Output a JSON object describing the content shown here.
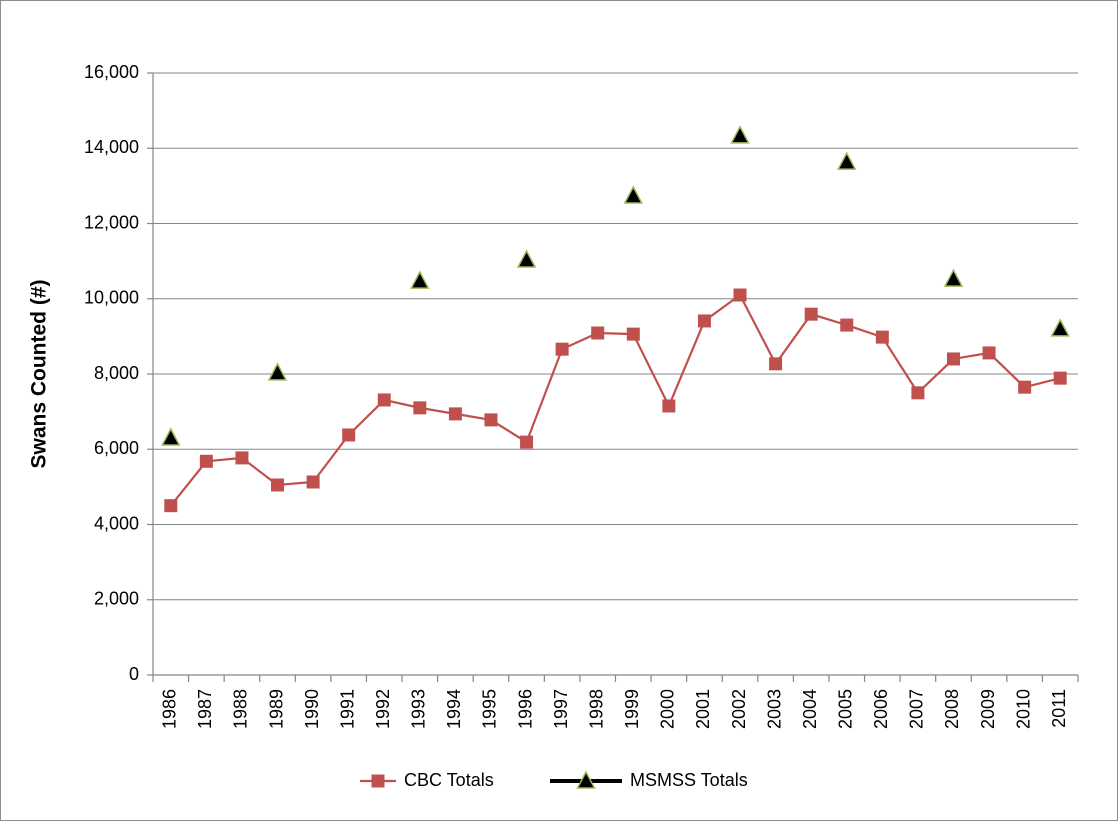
{
  "chart_data": {
    "type": "line",
    "y_label": "Swans Counted (#)",
    "categories": [
      "1986",
      "1987",
      "1988",
      "1989",
      "1990",
      "1991",
      "1992",
      "1993",
      "1994",
      "1995",
      "1996",
      "1997",
      "1998",
      "1999",
      "2000",
      "2001",
      "2002",
      "2003",
      "2004",
      "2005",
      "2006",
      "2007",
      "2008",
      "2009",
      "2010",
      "2011"
    ],
    "series": [
      {
        "name": "CBC Totals",
        "color": "#c0504d",
        "marker": "square",
        "line": true,
        "values": [
          4500,
          5680,
          5770,
          5050,
          5130,
          6380,
          7310,
          7100,
          6940,
          6780,
          6190,
          8660,
          9090,
          9060,
          7150,
          9410,
          10100,
          8270,
          9590,
          9300,
          8980,
          7500,
          8400,
          8560,
          7650,
          7890
        ]
      },
      {
        "name": "MSMSS Totals",
        "color": "#000000",
        "marker_edge": "#9bbb59",
        "marker": "triangle",
        "line": false,
        "values": [
          6300,
          null,
          null,
          8030,
          null,
          null,
          null,
          10470,
          null,
          null,
          11030,
          null,
          null,
          12730,
          null,
          null,
          14330,
          null,
          null,
          13630,
          null,
          null,
          10520,
          null,
          null,
          9200
        ]
      }
    ],
    "ylim": [
      0,
      16000
    ],
    "yticks": [
      0,
      {
        "value": 2000,
        "label": "2,000"
      },
      {
        "value": 4000,
        "label": "4,000"
      },
      {
        "value": 6000,
        "label": "6,000"
      },
      {
        "value": 8000,
        "label": "8,000"
      },
      {
        "value": 10000,
        "label": "10,000"
      },
      {
        "value": 12000,
        "label": "12,000"
      },
      {
        "value": 14000,
        "label": "14,000"
      },
      {
        "value": 16000,
        "label": "16,000"
      }
    ],
    "grid": true,
    "legend": "bottom"
  }
}
